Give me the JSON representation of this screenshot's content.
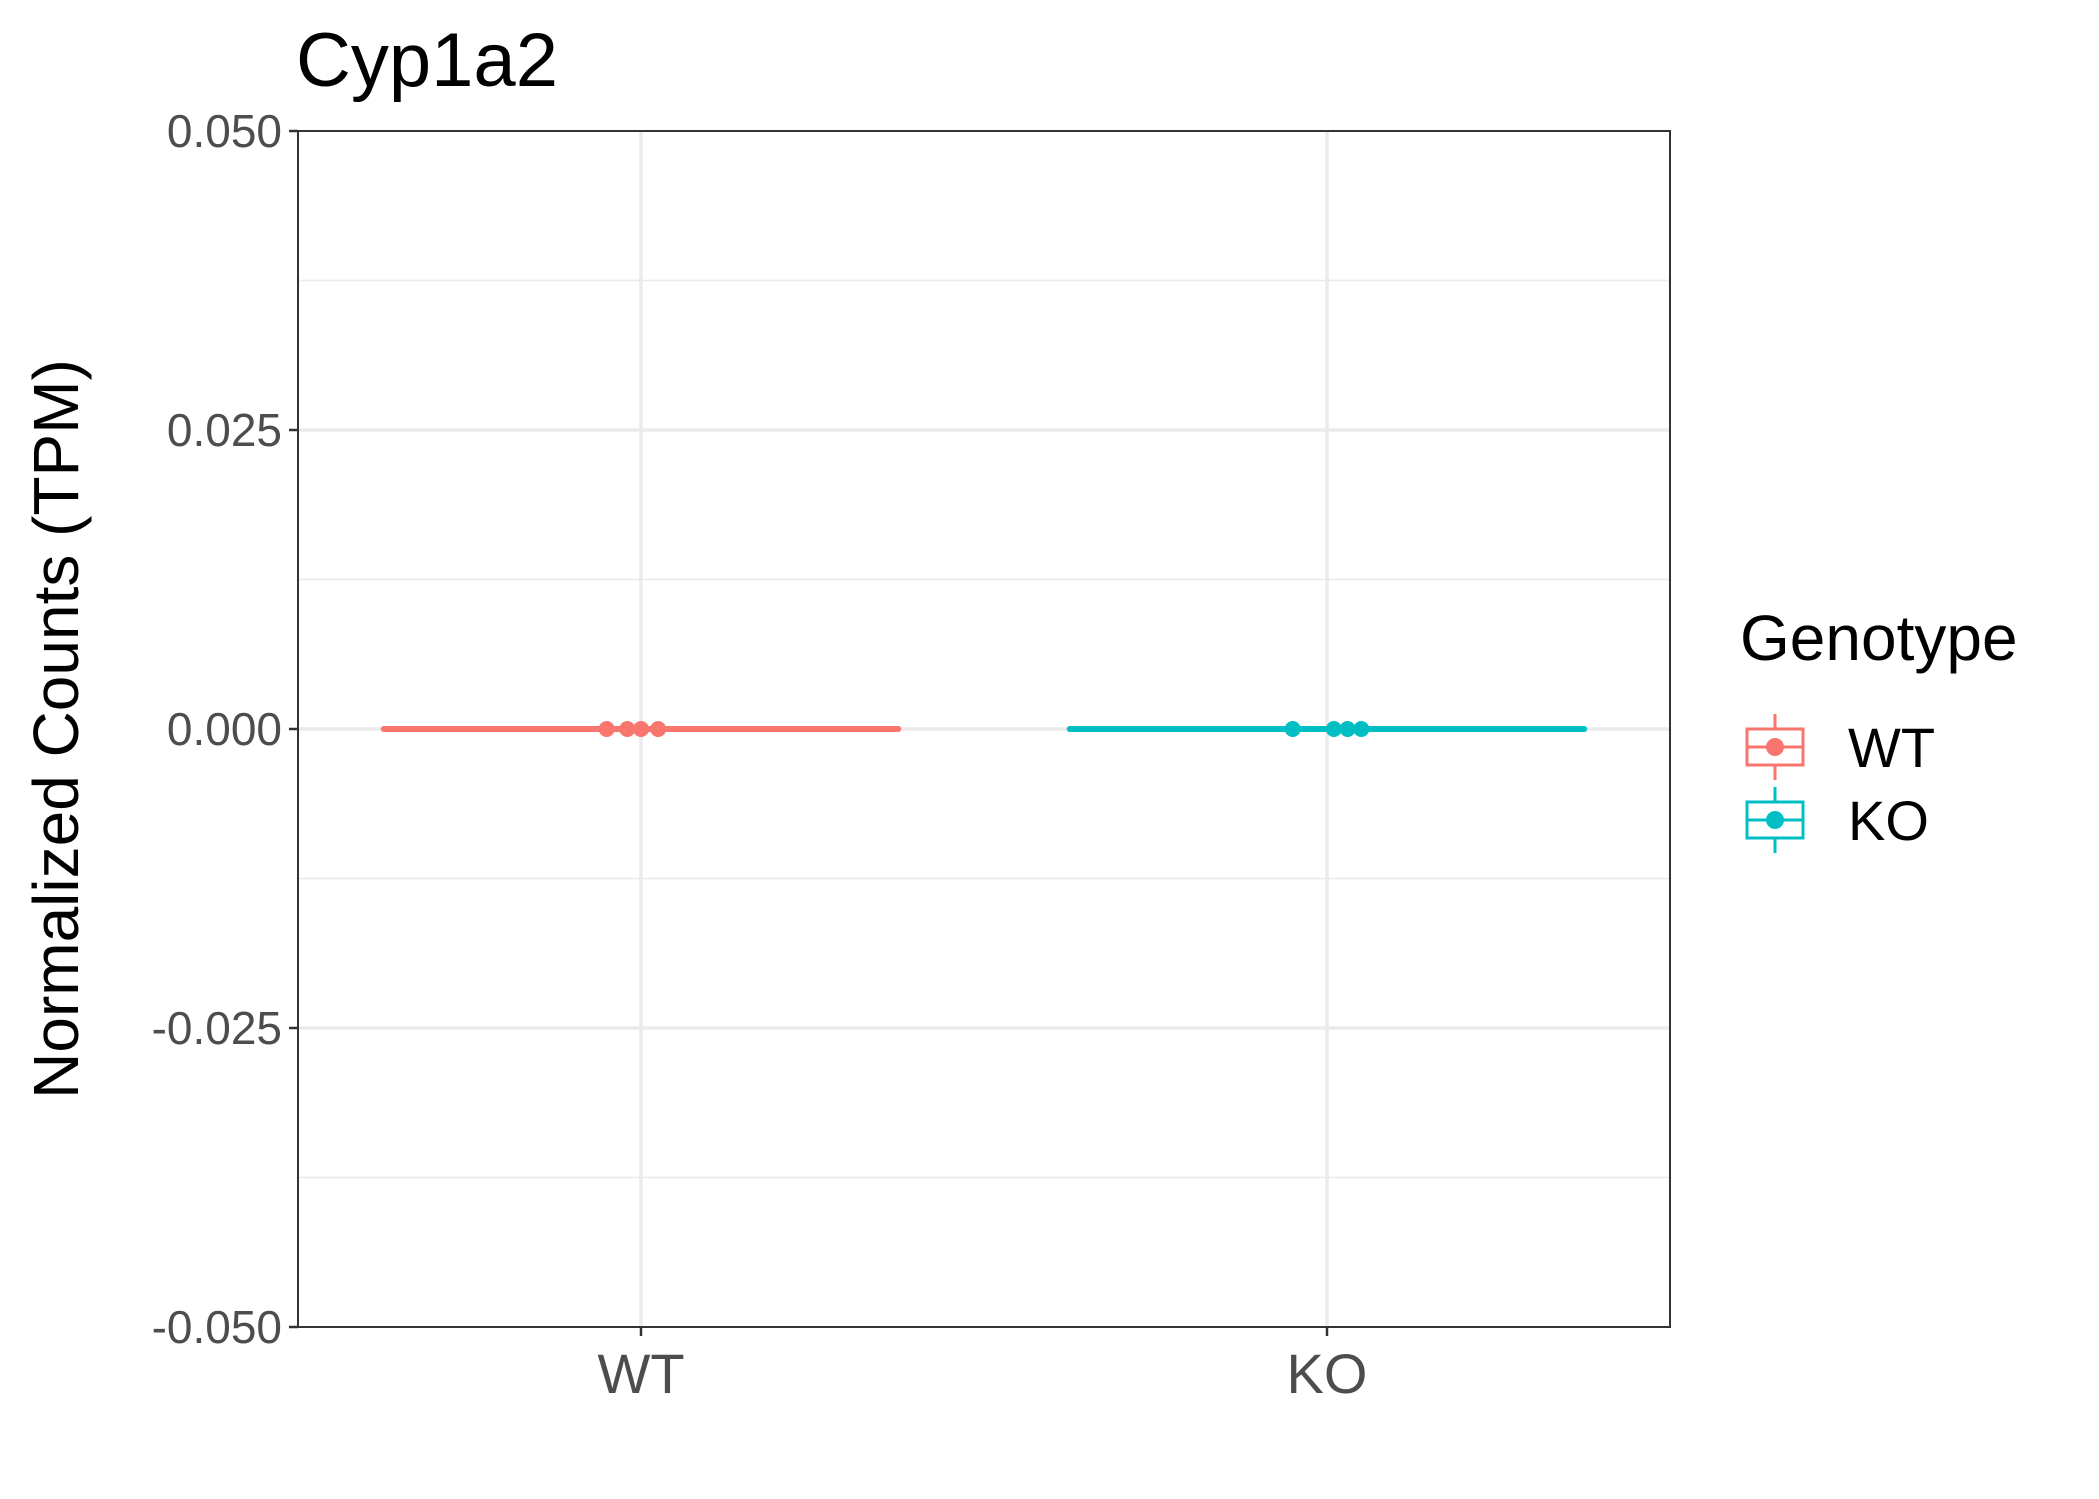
{
  "chart_data": {
    "type": "box",
    "title": "Cyp1a2",
    "xlabel": "",
    "ylabel": "Normalized Counts (TPM)",
    "ylim": [
      -0.05,
      0.05
    ],
    "yticks": [
      0.05,
      0.025,
      0.0,
      -0.025,
      -0.05
    ],
    "ytick_labels": [
      "0.050",
      "0.025",
      "0.000",
      "-0.025",
      "-0.050"
    ],
    "categories": [
      "WT",
      "KO"
    ],
    "grid": true,
    "legend": {
      "title": "Genotype",
      "position": "right"
    },
    "series": [
      {
        "name": "WT",
        "color": "#F8766D",
        "box": {
          "min": 0,
          "q1": 0,
          "median": 0,
          "q3": 0,
          "max": 0
        },
        "points": [
          {
            "x_jitter": -0.05,
            "y": 0
          },
          {
            "x_jitter": -0.02,
            "y": 0
          },
          {
            "x_jitter": 0.0,
            "y": 0
          },
          {
            "x_jitter": 0.025,
            "y": 0
          }
        ]
      },
      {
        "name": "KO",
        "color": "#00BFC4",
        "box": {
          "min": 0,
          "q1": 0,
          "median": 0,
          "q3": 0,
          "max": 0
        },
        "points": [
          {
            "x_jitter": -0.05,
            "y": 0
          },
          {
            "x_jitter": 0.01,
            "y": 0
          },
          {
            "x_jitter": 0.03,
            "y": 0
          },
          {
            "x_jitter": 0.05,
            "y": 0
          }
        ]
      }
    ]
  }
}
